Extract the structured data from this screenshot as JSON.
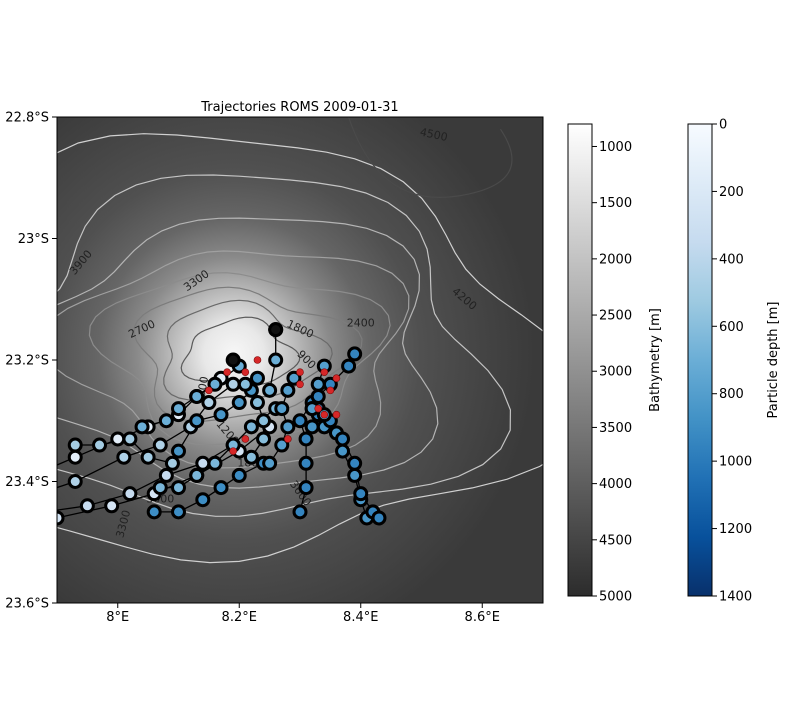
{
  "chart_data": {
    "type": "scatter",
    "title": "Trajectories ROMS 2009-01-31",
    "xlabel": "",
    "ylabel": "",
    "xlim": [
      7.9,
      8.7
    ],
    "ylim": [
      -23.6,
      -22.8
    ],
    "x_ticks": [
      {
        "value": 8.0,
        "label": "8°E"
      },
      {
        "value": 8.2,
        "label": "8.2°E"
      },
      {
        "value": 8.4,
        "label": "8.4°E"
      },
      {
        "value": 8.6,
        "label": "8.6°E"
      }
    ],
    "y_ticks": [
      {
        "value": -22.8,
        "label": "22.8°S"
      },
      {
        "value": -23.0,
        "label": "23°S"
      },
      {
        "value": -23.2,
        "label": "23.2°S"
      },
      {
        "value": -23.4,
        "label": "23.4°S"
      },
      {
        "value": -23.6,
        "label": "23.6°S"
      }
    ],
    "background": {
      "seamount_center": [
        8.2,
        -23.19
      ],
      "summit_depth": 800,
      "abyssal_depth": 4700
    },
    "contour_labels": [
      {
        "text": "4500",
        "x": 8.52,
        "y": -22.83,
        "angle": 12
      },
      {
        "text": "3900",
        "x": 7.94,
        "y": -23.04,
        "angle": -50
      },
      {
        "text": "3300",
        "x": 8.13,
        "y": -23.07,
        "angle": -35
      },
      {
        "text": "4200",
        "x": 8.57,
        "y": -23.1,
        "angle": 40
      },
      {
        "text": "2700",
        "x": 8.04,
        "y": -23.15,
        "angle": -25
      },
      {
        "text": "1800",
        "x": 8.3,
        "y": -23.15,
        "angle": 25
      },
      {
        "text": "2400",
        "x": 8.4,
        "y": -23.14,
        "angle": 0
      },
      {
        "text": "900",
        "x": 8.31,
        "y": -23.2,
        "angle": 45
      },
      {
        "text": "1500",
        "x": 8.14,
        "y": -23.25,
        "angle": -80
      },
      {
        "text": "1200",
        "x": 8.18,
        "y": -23.32,
        "angle": 50
      },
      {
        "text": "1800",
        "x": 8.22,
        "y": -23.37,
        "angle": 0
      },
      {
        "text": "3000",
        "x": 8.07,
        "y": -23.43,
        "angle": 0
      },
      {
        "text": "3300",
        "x": 8.01,
        "y": -23.47,
        "angle": -75
      },
      {
        "text": "3600",
        "x": 8.3,
        "y": -23.42,
        "angle": 55
      }
    ],
    "trajectories": [
      {
        "depth": 150,
        "points": [
          [
            7.86,
            -23.39
          ],
          [
            7.93,
            -23.36
          ],
          [
            8.0,
            -23.33
          ],
          [
            8.05,
            -23.31
          ],
          [
            8.1,
            -23.29
          ],
          [
            8.13,
            -23.26
          ],
          [
            8.17,
            -23.23
          ]
        ]
      },
      {
        "depth": 450,
        "points": [
          [
            7.84,
            -23.43
          ],
          [
            7.93,
            -23.4
          ],
          [
            8.01,
            -23.36
          ],
          [
            8.07,
            -23.34
          ],
          [
            8.12,
            -23.31
          ],
          [
            8.15,
            -23.27
          ],
          [
            8.19,
            -23.24
          ]
        ]
      },
      {
        "depth": 350,
        "points": [
          [
            7.88,
            -23.45
          ],
          [
            7.95,
            -23.44
          ],
          [
            8.02,
            -23.42
          ],
          [
            8.08,
            -23.39
          ],
          [
            8.14,
            -23.37
          ],
          [
            8.19,
            -23.34
          ]
        ]
      },
      {
        "depth": 250,
        "points": [
          [
            7.9,
            -23.46
          ],
          [
            7.99,
            -23.44
          ],
          [
            8.06,
            -23.42
          ],
          [
            8.13,
            -23.39
          ],
          [
            8.2,
            -23.35
          ],
          [
            8.25,
            -23.31
          ]
        ]
      },
      {
        "depth": 900,
        "points": [
          [
            8.06,
            -23.45
          ],
          [
            8.1,
            -23.45
          ],
          [
            8.14,
            -23.43
          ],
          [
            8.17,
            -23.41
          ],
          [
            8.2,
            -23.39
          ],
          [
            8.24,
            -23.37
          ]
        ]
      },
      {
        "depth": 650,
        "points": [
          [
            8.07,
            -23.41
          ],
          [
            8.1,
            -23.41
          ],
          [
            8.13,
            -23.39
          ],
          [
            8.16,
            -23.37
          ],
          [
            8.19,
            -23.34
          ],
          [
            8.22,
            -23.31
          ],
          [
            8.26,
            -23.28
          ]
        ]
      },
      {
        "depth": 500,
        "points": [
          [
            7.93,
            -23.34
          ],
          [
            7.97,
            -23.34
          ],
          [
            8.02,
            -23.33
          ],
          [
            8.05,
            -23.36
          ],
          [
            8.09,
            -23.37
          ]
        ]
      },
      {
        "depth": 850,
        "points": [
          [
            8.1,
            -23.35
          ],
          [
            8.13,
            -23.3
          ],
          [
            8.17,
            -23.29
          ],
          [
            8.2,
            -23.27
          ],
          [
            8.22,
            -23.25
          ],
          [
            8.23,
            -23.23
          ]
        ]
      },
      {
        "depth": 700,
        "points": [
          [
            8.04,
            -23.31
          ],
          [
            8.08,
            -23.3
          ],
          [
            8.1,
            -23.28
          ],
          [
            8.13,
            -23.26
          ],
          [
            8.16,
            -23.24
          ],
          [
            8.2,
            -23.21
          ]
        ]
      },
      {
        "depth": 600,
        "points": [
          [
            8.22,
            -23.36
          ],
          [
            8.24,
            -23.33
          ],
          [
            8.24,
            -23.3
          ],
          [
            8.23,
            -23.27
          ],
          [
            8.21,
            -23.24
          ]
        ]
      },
      {
        "depth": 800,
        "points": [
          [
            8.25,
            -23.37
          ],
          [
            8.27,
            -23.34
          ],
          [
            8.28,
            -23.31
          ],
          [
            8.27,
            -23.28
          ],
          [
            8.28,
            -23.25
          ],
          [
            8.29,
            -23.23
          ]
        ]
      },
      {
        "depth": 950,
        "points": [
          [
            8.3,
            -23.45
          ],
          [
            8.31,
            -23.41
          ],
          [
            8.31,
            -23.37
          ],
          [
            8.31,
            -23.33
          ],
          [
            8.3,
            -23.3
          ],
          [
            8.32,
            -23.27
          ]
        ]
      },
      {
        "depth": 850,
        "points": [
          [
            8.32,
            -23.31
          ],
          [
            8.34,
            -23.31
          ],
          [
            8.36,
            -23.32
          ],
          [
            8.37,
            -23.35
          ],
          [
            8.39,
            -23.39
          ],
          [
            8.4,
            -23.43
          ],
          [
            8.41,
            -23.46
          ]
        ]
      },
      {
        "depth": 950,
        "points": [
          [
            8.33,
            -23.28
          ],
          [
            8.35,
            -23.3
          ],
          [
            8.37,
            -23.33
          ],
          [
            8.39,
            -23.37
          ],
          [
            8.4,
            -23.42
          ],
          [
            8.42,
            -23.45
          ],
          [
            8.43,
            -23.46
          ]
        ]
      },
      {
        "depth": 950,
        "points": [
          [
            8.39,
            -23.19
          ],
          [
            8.38,
            -23.21
          ],
          [
            8.35,
            -23.24
          ],
          [
            8.33,
            -23.26
          ],
          [
            8.32,
            -23.28
          ],
          [
            8.33,
            -23.29
          ]
        ]
      },
      {
        "depth": 800,
        "points": [
          [
            8.34,
            -23.21
          ],
          [
            8.33,
            -23.24
          ],
          [
            8.32,
            -23.28
          ],
          [
            8.34,
            -23.29
          ]
        ]
      },
      {
        "depth": 700,
        "points": [
          [
            8.26,
            -23.15
          ],
          [
            8.26,
            -23.2
          ],
          [
            8.25,
            -23.25
          ]
        ]
      }
    ],
    "red_markers": [
      [
        8.21,
        -23.22
      ],
      [
        8.19,
        -23.2
      ],
      [
        8.18,
        -23.22
      ],
      [
        8.23,
        -23.2
      ],
      [
        8.3,
        -23.22
      ],
      [
        8.3,
        -23.24
      ],
      [
        8.34,
        -23.22
      ],
      [
        8.36,
        -23.23
      ],
      [
        8.35,
        -23.25
      ],
      [
        8.33,
        -23.28
      ],
      [
        8.34,
        -23.29
      ],
      [
        8.36,
        -23.29
      ],
      [
        8.21,
        -23.33
      ],
      [
        8.28,
        -23.33
      ],
      [
        8.19,
        -23.35
      ],
      [
        8.15,
        -23.25
      ]
    ],
    "black_dots": [
      [
        8.26,
        -23.15
      ],
      [
        8.19,
        -23.2
      ]
    ],
    "colorbars": [
      {
        "label": "Bathymetry [m]",
        "min": 800,
        "max": 5000,
        "ticks": [
          1000,
          1500,
          2000,
          2500,
          3000,
          3500,
          4000,
          4500,
          5000
        ],
        "colors": [
          "#ffffff",
          "#2c2c2c"
        ]
      },
      {
        "label": "Particle depth [m]",
        "min": 0,
        "max": 1400,
        "ticks": [
          0,
          200,
          400,
          600,
          800,
          1000,
          1200,
          1400
        ],
        "colors": [
          "#f7fbff",
          "#deebf7",
          "#c6dbef",
          "#9ecae1",
          "#6baed6",
          "#4292c6",
          "#2171b5",
          "#08519c",
          "#08306b"
        ]
      }
    ]
  }
}
